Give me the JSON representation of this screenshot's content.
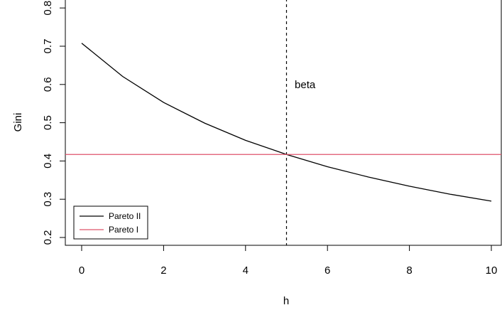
{
  "chart_data": {
    "type": "line",
    "xlabel": "h",
    "ylabel": "Gini",
    "xlim": [
      -0.4,
      10.4
    ],
    "ylim": [
      0.18,
      0.82
    ],
    "x_ticks": [
      0,
      2,
      4,
      6,
      8,
      10
    ],
    "y_ticks": [
      0.2,
      0.3,
      0.4,
      0.5,
      0.6,
      0.7,
      0.8
    ],
    "x_tick_labels": [
      "0",
      "2",
      "4",
      "6",
      "8",
      "10"
    ],
    "y_tick_labels": [
      "0.2",
      "0.3",
      "0.4",
      "0.5",
      "0.6",
      "0.7",
      "0.8"
    ],
    "grid": false,
    "legend_position": "bottom-left",
    "series": [
      {
        "name": "Pareto II",
        "color": "#000000",
        "x": [
          0,
          1,
          2,
          3,
          4,
          5,
          6,
          7,
          8,
          9,
          10
        ],
        "y": [
          0.708,
          0.621,
          0.553,
          0.499,
          0.454,
          0.417,
          0.385,
          0.358,
          0.334,
          0.313,
          0.295
        ]
      },
      {
        "name": "Pareto I",
        "color": "#df536b",
        "x": [
          -0.4,
          10.4
        ],
        "y": [
          0.417,
          0.417
        ]
      }
    ],
    "vline": {
      "x": 5,
      "style": "dashed",
      "color": "#000000"
    },
    "annotations": [
      {
        "text": "beta",
        "x": 5.2,
        "y": 0.6
      }
    ]
  }
}
